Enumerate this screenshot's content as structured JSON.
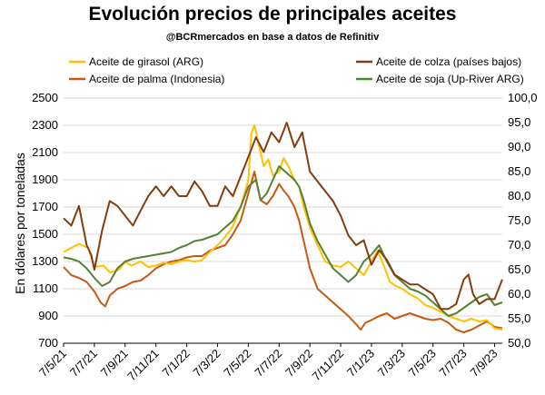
{
  "title": "Evolución precios de principales aceites",
  "subtitle": "@BCRmercados  en base a datos de Refinitiv",
  "chart_data": {
    "type": "line",
    "title": "Evolución precios de principales aceites",
    "subtitle": "@BCRmercados  en base a datos de Refinitiv",
    "ylabel": "En dólares por toneladas",
    "ylim": [
      700,
      2500
    ],
    "y2lim": [
      50,
      100
    ],
    "y_ticks": [
      "700",
      "900",
      "1100",
      "1300",
      "1500",
      "1700",
      "1900",
      "2100",
      "2300",
      "2500"
    ],
    "y2_ticks": [
      "50,0",
      "55,0",
      "60,0",
      "65,0",
      "70,0",
      "75,0",
      "80,0",
      "85,0",
      "90,0",
      "95,0",
      "100,0"
    ],
    "x_ticks": [
      "7/5/21",
      "7/7/21",
      "7/9/21",
      "7/11/21",
      "7/1/22",
      "7/3/22",
      "7/5/22",
      "7/7/22",
      "7/9/22",
      "7/11/22",
      "7/1/23",
      "7/3/23",
      "7/5/23",
      "7/7/23",
      "7/9/23"
    ],
    "x_range": [
      0,
      28.5
    ],
    "grid": true,
    "legend_position": "top",
    "series": [
      {
        "name": "Aceite de girasol (ARG)",
        "color": "#FFC000",
        "axis": "left",
        "points": [
          [
            0,
            1370
          ],
          [
            0.5,
            1400
          ],
          [
            1,
            1430
          ],
          [
            1.6,
            1400
          ],
          [
            2,
            1260
          ],
          [
            2.6,
            1270
          ],
          [
            3,
            1220
          ],
          [
            3.6,
            1240
          ],
          [
            4,
            1300
          ],
          [
            4.4,
            1270
          ],
          [
            5,
            1300
          ],
          [
            5.5,
            1260
          ],
          [
            6,
            1270
          ],
          [
            6.5,
            1290
          ],
          [
            7,
            1280
          ],
          [
            7.5,
            1300
          ],
          [
            8,
            1310
          ],
          [
            8.5,
            1300
          ],
          [
            9,
            1310
          ],
          [
            9.5,
            1370
          ],
          [
            10,
            1420
          ],
          [
            10.5,
            1480
          ],
          [
            11,
            1560
          ],
          [
            11.5,
            1700
          ],
          [
            12,
            1900
          ],
          [
            12.2,
            2240
          ],
          [
            12.4,
            2300
          ],
          [
            12.6,
            2200
          ],
          [
            13,
            2000
          ],
          [
            13.3,
            2050
          ],
          [
            13.6,
            1930
          ],
          [
            14,
            1960
          ],
          [
            14.3,
            2060
          ],
          [
            14.6,
            2000
          ],
          [
            15,
            1900
          ],
          [
            15.3,
            1850
          ],
          [
            15.6,
            1700
          ],
          [
            16,
            1550
          ],
          [
            16.5,
            1420
          ],
          [
            17,
            1300
          ],
          [
            17.5,
            1270
          ],
          [
            18,
            1260
          ],
          [
            18.5,
            1300
          ],
          [
            19,
            1250
          ],
          [
            19.5,
            1200
          ],
          [
            20,
            1300
          ],
          [
            20.4,
            1380
          ],
          [
            20.8,
            1270
          ],
          [
            21.2,
            1150
          ],
          [
            21.6,
            1120
          ],
          [
            22,
            1100
          ],
          [
            22.5,
            1060
          ],
          [
            23,
            1030
          ],
          [
            23.5,
            980
          ],
          [
            24,
            960
          ],
          [
            24.5,
            930
          ],
          [
            25,
            900
          ],
          [
            25.5,
            880
          ],
          [
            26,
            860
          ],
          [
            26.5,
            880
          ],
          [
            27,
            860
          ],
          [
            27.5,
            870
          ],
          [
            28,
            810
          ],
          [
            28.5,
            800
          ]
        ]
      },
      {
        "name": "Aceite de palma (Indonesia)",
        "color": "#C55A11",
        "axis": "left",
        "points": [
          [
            0,
            1260
          ],
          [
            0.5,
            1200
          ],
          [
            1,
            1180
          ],
          [
            1.5,
            1150
          ],
          [
            2,
            1080
          ],
          [
            2.4,
            1000
          ],
          [
            2.7,
            970
          ],
          [
            3,
            1050
          ],
          [
            3.5,
            1100
          ],
          [
            4,
            1120
          ],
          [
            4.5,
            1150
          ],
          [
            5,
            1160
          ],
          [
            5.5,
            1200
          ],
          [
            6,
            1250
          ],
          [
            6.5,
            1280
          ],
          [
            7,
            1300
          ],
          [
            7.5,
            1310
          ],
          [
            8,
            1330
          ],
          [
            8.5,
            1340
          ],
          [
            9,
            1340
          ],
          [
            9.5,
            1380
          ],
          [
            10,
            1400
          ],
          [
            10.5,
            1420
          ],
          [
            11,
            1500
          ],
          [
            11.5,
            1600
          ],
          [
            12,
            1800
          ],
          [
            12.4,
            1960
          ],
          [
            12.8,
            1750
          ],
          [
            13.2,
            1720
          ],
          [
            13.6,
            1780
          ],
          [
            14,
            1870
          ],
          [
            14.3,
            1820
          ],
          [
            14.6,
            1780
          ],
          [
            15,
            1700
          ],
          [
            15.3,
            1600
          ],
          [
            15.6,
            1450
          ],
          [
            16,
            1250
          ],
          [
            16.5,
            1100
          ],
          [
            17,
            1050
          ],
          [
            17.5,
            1000
          ],
          [
            18,
            950
          ],
          [
            18.5,
            900
          ],
          [
            19,
            840
          ],
          [
            19.3,
            800
          ],
          [
            19.6,
            850
          ],
          [
            20,
            870
          ],
          [
            20.5,
            900
          ],
          [
            21,
            920
          ],
          [
            21.5,
            880
          ],
          [
            22,
            900
          ],
          [
            22.5,
            920
          ],
          [
            23,
            900
          ],
          [
            23.5,
            880
          ],
          [
            24,
            870
          ],
          [
            24.5,
            880
          ],
          [
            25,
            850
          ],
          [
            25.5,
            800
          ],
          [
            26,
            780
          ],
          [
            26.5,
            800
          ],
          [
            27,
            830
          ],
          [
            27.5,
            860
          ],
          [
            28,
            820
          ],
          [
            28.5,
            810
          ]
        ]
      },
      {
        "name": "Aceite de colza (países bajos)",
        "color": "#843C0C",
        "axis": "right",
        "points": [
          [
            0,
            75.5
          ],
          [
            0.5,
            74
          ],
          [
            1,
            78
          ],
          [
            1.5,
            70
          ],
          [
            1.8,
            68
          ],
          [
            2,
            65
          ],
          [
            2.5,
            73
          ],
          [
            3,
            79
          ],
          [
            3.5,
            78
          ],
          [
            4,
            76
          ],
          [
            4.5,
            74
          ],
          [
            5,
            77
          ],
          [
            5.5,
            80
          ],
          [
            6,
            82
          ],
          [
            6.5,
            80
          ],
          [
            7,
            82
          ],
          [
            7.5,
            80
          ],
          [
            8,
            80
          ],
          [
            8.5,
            83
          ],
          [
            9,
            81
          ],
          [
            9.5,
            78
          ],
          [
            10,
            78
          ],
          [
            10.5,
            82
          ],
          [
            11,
            80
          ],
          [
            11.5,
            84
          ],
          [
            12,
            88
          ],
          [
            12.5,
            92
          ],
          [
            13,
            89
          ],
          [
            13.5,
            93
          ],
          [
            14,
            91
          ],
          [
            14.5,
            95
          ],
          [
            15,
            90
          ],
          [
            15.5,
            93
          ],
          [
            16,
            85
          ],
          [
            16.5,
            83
          ],
          [
            17,
            81
          ],
          [
            17.5,
            79
          ],
          [
            18,
            76
          ],
          [
            18.5,
            72
          ],
          [
            19,
            70
          ],
          [
            19.5,
            71
          ],
          [
            20,
            66
          ],
          [
            20.5,
            69
          ],
          [
            21,
            67
          ],
          [
            21.5,
            64
          ],
          [
            22,
            63
          ],
          [
            22.5,
            62
          ],
          [
            23,
            62
          ],
          [
            23.5,
            61
          ],
          [
            24,
            60
          ],
          [
            24.5,
            57
          ],
          [
            25,
            57
          ],
          [
            25.5,
            58
          ],
          [
            26,
            63
          ],
          [
            26.3,
            64
          ],
          [
            26.6,
            60
          ],
          [
            27,
            58
          ],
          [
            27.5,
            59
          ],
          [
            28,
            59
          ],
          [
            28.5,
            63
          ]
        ]
      },
      {
        "name": "Aceite de soja (Up-River ARG)",
        "color": "#548235",
        "axis": "left",
        "points": [
          [
            0,
            1330
          ],
          [
            0.5,
            1320
          ],
          [
            1,
            1300
          ],
          [
            1.5,
            1250
          ],
          [
            2,
            1180
          ],
          [
            2.5,
            1120
          ],
          [
            3,
            1150
          ],
          [
            3.5,
            1250
          ],
          [
            4,
            1300
          ],
          [
            4.5,
            1320
          ],
          [
            5,
            1330
          ],
          [
            5.5,
            1340
          ],
          [
            6,
            1350
          ],
          [
            6.5,
            1360
          ],
          [
            7,
            1370
          ],
          [
            7.5,
            1400
          ],
          [
            8,
            1420
          ],
          [
            8.5,
            1450
          ],
          [
            9,
            1460
          ],
          [
            9.5,
            1480
          ],
          [
            10,
            1500
          ],
          [
            10.5,
            1550
          ],
          [
            11,
            1600
          ],
          [
            11.5,
            1700
          ],
          [
            12,
            1850
          ],
          [
            12.5,
            1900
          ],
          [
            12.8,
            1750
          ],
          [
            13.2,
            1800
          ],
          [
            13.6,
            1900
          ],
          [
            14,
            2000
          ],
          [
            14.5,
            1950
          ],
          [
            15,
            1900
          ],
          [
            15.3,
            1850
          ],
          [
            15.6,
            1750
          ],
          [
            16,
            1580
          ],
          [
            16.5,
            1450
          ],
          [
            17,
            1350
          ],
          [
            17.5,
            1250
          ],
          [
            18,
            1200
          ],
          [
            18.5,
            1150
          ],
          [
            19,
            1200
          ],
          [
            19.5,
            1300
          ],
          [
            20,
            1350
          ],
          [
            20.5,
            1420
          ],
          [
            21,
            1300
          ],
          [
            21.5,
            1200
          ],
          [
            22,
            1150
          ],
          [
            22.5,
            1100
          ],
          [
            23,
            1080
          ],
          [
            23.5,
            1050
          ],
          [
            24,
            1000
          ],
          [
            24.5,
            950
          ],
          [
            25,
            900
          ],
          [
            25.5,
            920
          ],
          [
            26,
            960
          ],
          [
            26.5,
            1000
          ],
          [
            27,
            1040
          ],
          [
            27.5,
            1060
          ],
          [
            28,
            980
          ],
          [
            28.5,
            1000
          ]
        ]
      }
    ]
  }
}
